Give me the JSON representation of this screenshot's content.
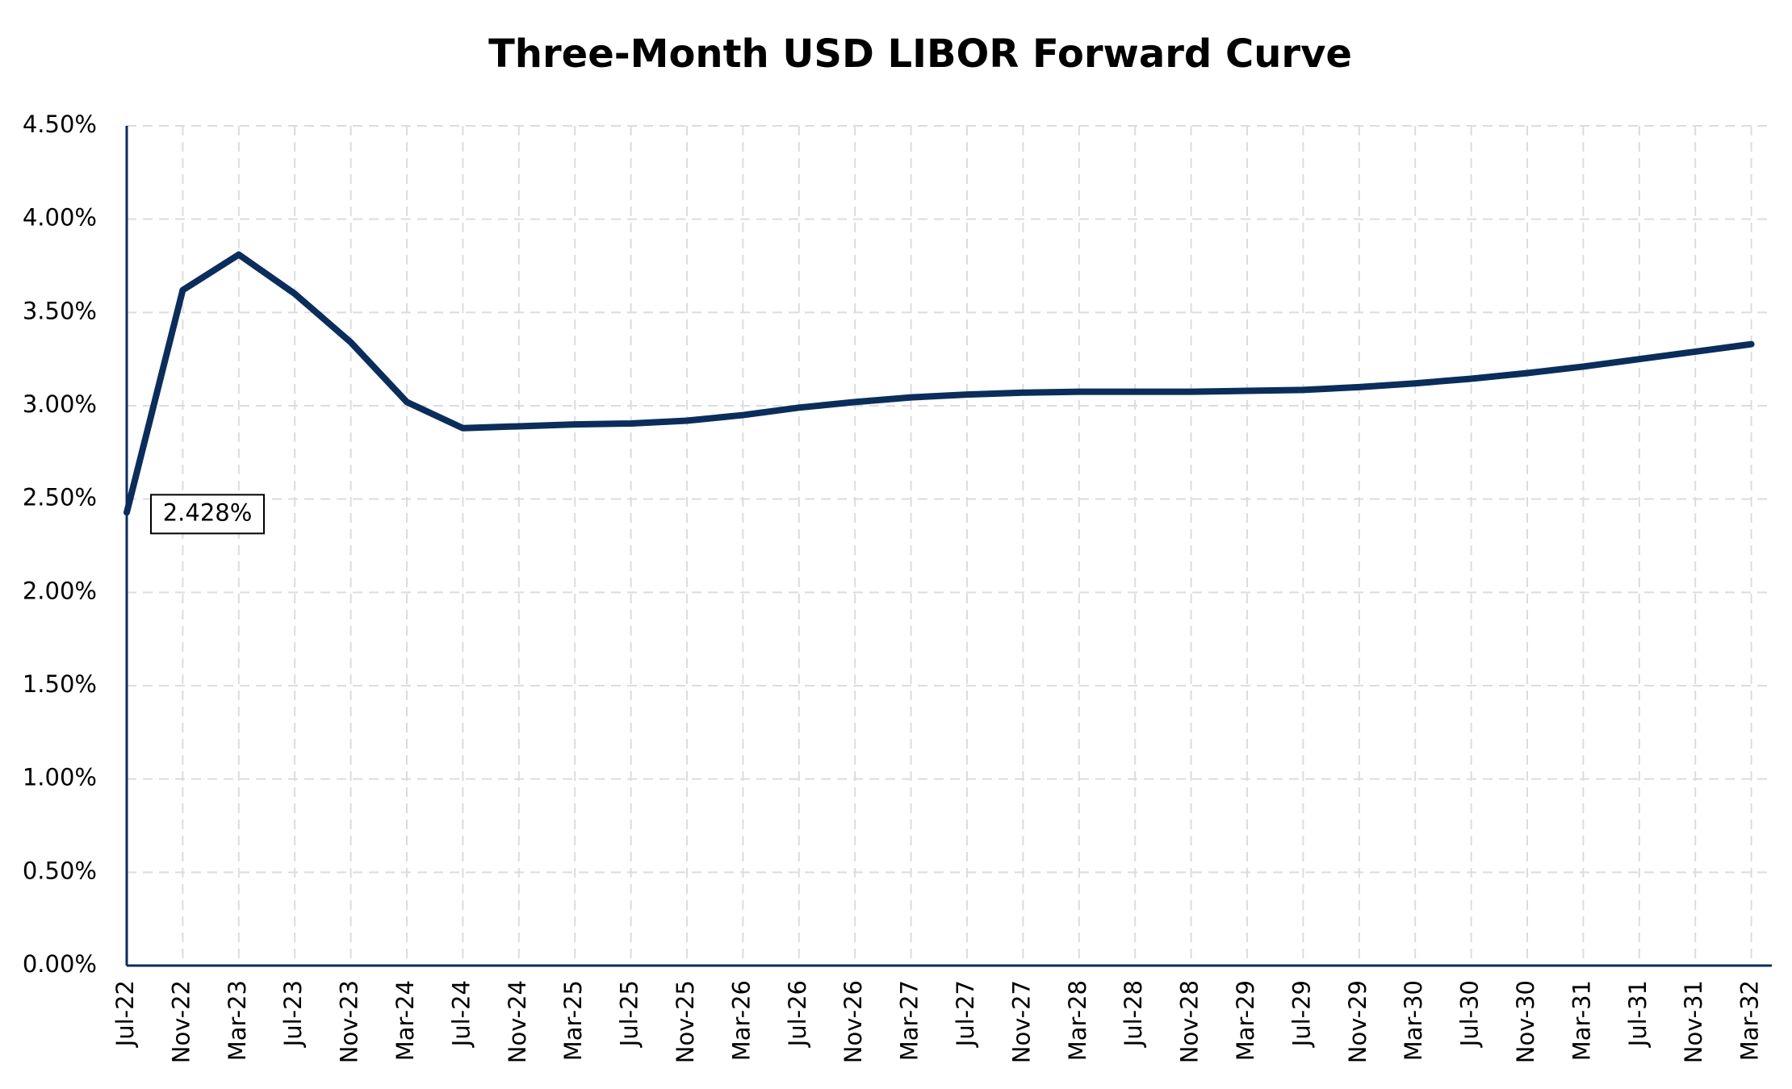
{
  "chart_data": {
    "type": "line",
    "title": "Three-Month USD LIBOR Forward Curve",
    "categories": [
      "Jul-22",
      "Nov-22",
      "Mar-23",
      "Jul-23",
      "Nov-23",
      "Mar-24",
      "Jul-24",
      "Nov-24",
      "Mar-25",
      "Jul-25",
      "Nov-25",
      "Mar-26",
      "Jul-26",
      "Nov-26",
      "Mar-27",
      "Jul-27",
      "Nov-27",
      "Mar-28",
      "Jul-28",
      "Nov-28",
      "Mar-29",
      "Jul-29",
      "Nov-29",
      "Mar-30",
      "Jul-30",
      "Nov-30",
      "Mar-31",
      "Jul-31",
      "Nov-31",
      "Mar-32"
    ],
    "series": [
      {
        "color": "#0b2d5b",
        "values": [
          2.428,
          3.62,
          3.81,
          3.6,
          3.34,
          3.02,
          2.88,
          2.89,
          2.9,
          2.905,
          2.92,
          2.95,
          2.99,
          3.02,
          3.045,
          3.06,
          3.07,
          3.075,
          3.075,
          3.075,
          3.08,
          3.085,
          3.1,
          3.12,
          3.145,
          3.175,
          3.21,
          3.25,
          3.29,
          3.33
        ],
        "value_labels": [
          "2.428%"
        ]
      }
    ],
    "ylim": [
      0,
      4.5
    ],
    "yticks": [
      {
        "value": 0,
        "label": "0.00%"
      },
      {
        "value": 0.5,
        "label": "0.50%"
      },
      {
        "value": 1,
        "label": "1.00%"
      },
      {
        "value": 1.5,
        "label": "1.50%"
      },
      {
        "value": 2,
        "label": "2.00%"
      },
      {
        "value": 2.5,
        "label": "2.50%"
      },
      {
        "value": 3,
        "label": "3.00%"
      },
      {
        "value": 3.5,
        "label": "3.50%"
      },
      {
        "value": 4,
        "label": "4.00%"
      },
      {
        "value": 4.5,
        "label": "4.50%"
      }
    ],
    "grid": true
  }
}
